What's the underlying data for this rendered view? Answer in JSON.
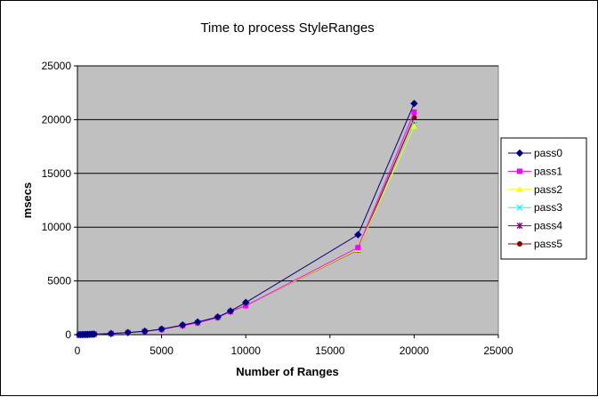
{
  "chart_data": {
    "type": "line",
    "title": "Time to process StyleRanges",
    "xlabel": "Number of Ranges",
    "ylabel": "msecs",
    "xlim": [
      0,
      25000
    ],
    "ylim": [
      0,
      25000
    ],
    "x_ticks": [
      0,
      5000,
      10000,
      15000,
      20000,
      25000
    ],
    "y_ticks": [
      0,
      5000,
      10000,
      15000,
      20000,
      25000
    ],
    "x_tick_labels": [
      "0",
      "5000",
      "10000",
      "15000",
      "20000",
      "25000"
    ],
    "y_tick_labels": [
      "0",
      "5000",
      "10000",
      "15000",
      "20000",
      "25000"
    ],
    "grid": "horizontal",
    "legend_position": "right",
    "plot_background": "#c0c0c0",
    "x": [
      100,
      200,
      300,
      400,
      500,
      600,
      700,
      800,
      900,
      1000,
      2000,
      3000,
      4000,
      5000,
      6250,
      7142,
      8333,
      9090,
      10000,
      16666,
      20000
    ],
    "series": [
      {
        "name": "pass0",
        "color": "#000080",
        "marker": "diamond",
        "values": [
          3,
          5,
          8,
          12,
          16,
          22,
          28,
          35,
          42,
          50,
          110,
          200,
          320,
          520,
          900,
          1180,
          1650,
          2200,
          3000,
          9300,
          21500
        ]
      },
      {
        "name": "pass1",
        "color": "#ff00ff",
        "marker": "square",
        "values": [
          3,
          5,
          8,
          12,
          16,
          22,
          28,
          35,
          42,
          50,
          100,
          190,
          300,
          500,
          850,
          1100,
          1600,
          2150,
          2700,
          8100,
          20700
        ]
      },
      {
        "name": "pass2",
        "color": "#ffff00",
        "marker": "triangle",
        "values": [
          3,
          5,
          8,
          12,
          16,
          22,
          28,
          35,
          42,
          50,
          100,
          190,
          300,
          500,
          850,
          1100,
          1600,
          2150,
          2700,
          7950,
          19400
        ]
      },
      {
        "name": "pass3",
        "color": "#00ffff",
        "marker": "x",
        "values": [
          3,
          5,
          8,
          12,
          16,
          22,
          28,
          35,
          42,
          50,
          100,
          190,
          300,
          500,
          850,
          1100,
          1600,
          2150,
          2700,
          7950,
          19500
        ]
      },
      {
        "name": "pass4",
        "color": "#800080",
        "marker": "star",
        "values": [
          3,
          5,
          8,
          12,
          16,
          22,
          28,
          35,
          42,
          50,
          100,
          190,
          300,
          500,
          850,
          1100,
          1600,
          2150,
          2700,
          7900,
          19500
        ]
      },
      {
        "name": "pass5",
        "color": "#800000",
        "marker": "circle",
        "values": [
          3,
          5,
          8,
          12,
          16,
          22,
          28,
          35,
          42,
          50,
          100,
          190,
          300,
          500,
          850,
          1100,
          1600,
          2150,
          2700,
          7900,
          20200
        ]
      }
    ]
  }
}
